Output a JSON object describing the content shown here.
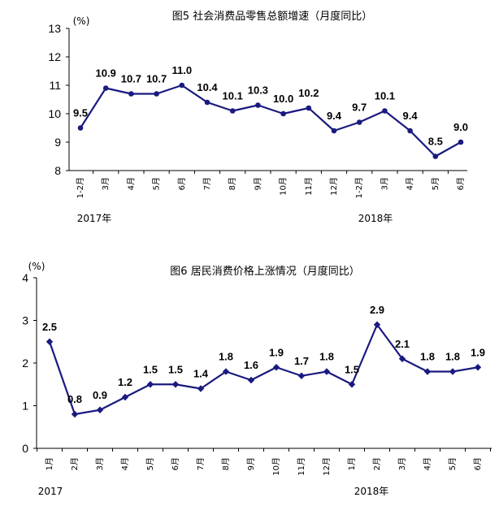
{
  "chart_data": [
    {
      "type": "line",
      "title": "图5  社会消费品零售总额增速（月度同比）",
      "unit": "(%)",
      "categories": [
        "1-2月",
        "3月",
        "4月",
        "5月",
        "6月",
        "7月",
        "8月",
        "9月",
        "10月",
        "11月",
        "12月",
        "1-2月",
        "3月",
        "4月",
        "5月",
        "6月"
      ],
      "year_labels": [
        "2017年",
        "2018年"
      ],
      "series": [
        {
          "values": [
            9.5,
            10.9,
            10.7,
            10.7,
            11.0,
            10.4,
            10.1,
            10.3,
            10.0,
            10.2,
            9.4,
            9.7,
            10.1,
            9.4,
            8.5,
            9.0
          ],
          "labels": [
            "9.5",
            "10.9",
            "10.7",
            "10.7",
            "11.0",
            "10.4",
            "10.1",
            "10.3",
            "10.0",
            "10.2",
            "9.4",
            "9.7",
            "10.1",
            "9.4",
            "8.5",
            "9.0"
          ]
        }
      ],
      "ylim": [
        8,
        13
      ],
      "yticks": [
        "8",
        "9",
        "10",
        "11",
        "12",
        "13"
      ],
      "grid": false,
      "color": "#1a1a80",
      "marker": "circle"
    },
    {
      "type": "line",
      "title": "图6  居民消费价格上涨情况（月度同比）",
      "unit": "(%)",
      "categories": [
        "1月",
        "2月",
        "3月",
        "4月",
        "5月",
        "6月",
        "7月",
        "8月",
        "9月",
        "10月",
        "11月",
        "12月",
        "1月",
        "2月",
        "3月",
        "4月",
        "5月",
        "6月"
      ],
      "year_labels": [
        "2017",
        "2018年"
      ],
      "series": [
        {
          "values": [
            2.5,
            0.8,
            0.9,
            1.2,
            1.5,
            1.5,
            1.4,
            1.8,
            1.6,
            1.9,
            1.7,
            1.8,
            1.5,
            2.9,
            2.1,
            1.8,
            1.8,
            1.9
          ],
          "labels": [
            "2.5",
            "0.8",
            "0.9",
            "1.2",
            "1.5",
            "1.5",
            "1.4",
            "1.8",
            "1.6",
            "1.9",
            "1.7",
            "1.8",
            "1.5",
            "2.9",
            "2.1",
            "1.8",
            "1.8",
            "1.9"
          ]
        }
      ],
      "ylim": [
        0,
        4
      ],
      "yticks": [
        "0",
        "1",
        "2",
        "3",
        "4"
      ],
      "grid": false,
      "color": "#1a1a80",
      "marker": "diamond"
    }
  ]
}
